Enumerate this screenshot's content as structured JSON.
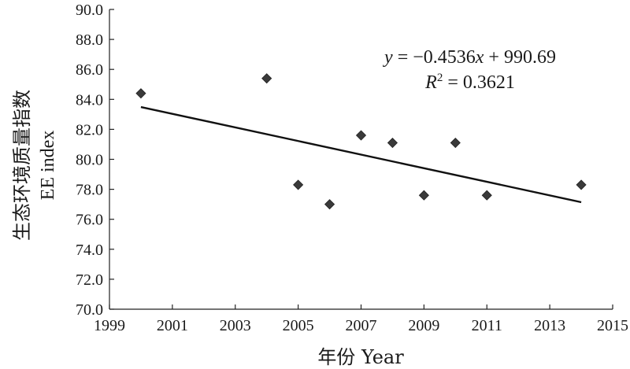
{
  "chart_data": {
    "type": "scatter",
    "xlabel": "年份 Year",
    "ylabel_line1": "生态环境质量指数",
    "ylabel_line2": "EE index",
    "xlim": [
      1999,
      2015
    ],
    "ylim": [
      70,
      90
    ],
    "x_ticks": [
      "1999",
      "2001",
      "2003",
      "2005",
      "2007",
      "2009",
      "2011",
      "2013",
      "2015"
    ],
    "y_ticks": [
      "70.0",
      "72.0",
      "74.0",
      "76.0",
      "78.0",
      "80.0",
      "82.0",
      "84.0",
      "86.0",
      "88.0",
      "90.0"
    ],
    "grid": false,
    "points": [
      {
        "x": 2000,
        "y": 84.4
      },
      {
        "x": 2004,
        "y": 85.4
      },
      {
        "x": 2005,
        "y": 78.3
      },
      {
        "x": 2006,
        "y": 77.0
      },
      {
        "x": 2007,
        "y": 81.6
      },
      {
        "x": 2008,
        "y": 81.1
      },
      {
        "x": 2009,
        "y": 77.6
      },
      {
        "x": 2010,
        "y": 81.1
      },
      {
        "x": 2011,
        "y": 77.6
      },
      {
        "x": 2014,
        "y": 78.3
      }
    ],
    "trendline": {
      "slope": -0.4536,
      "intercept": 990.69,
      "x_range": [
        2000,
        2014
      ],
      "equation": "y = −0.4536x + 990.69",
      "r_squared_label": "R",
      "r_squared_sup": "2",
      "r_squared_value": " = 0.3621"
    },
    "marker": "diamond",
    "marker_color": "#3a3a3a",
    "line_color": "#111111"
  }
}
